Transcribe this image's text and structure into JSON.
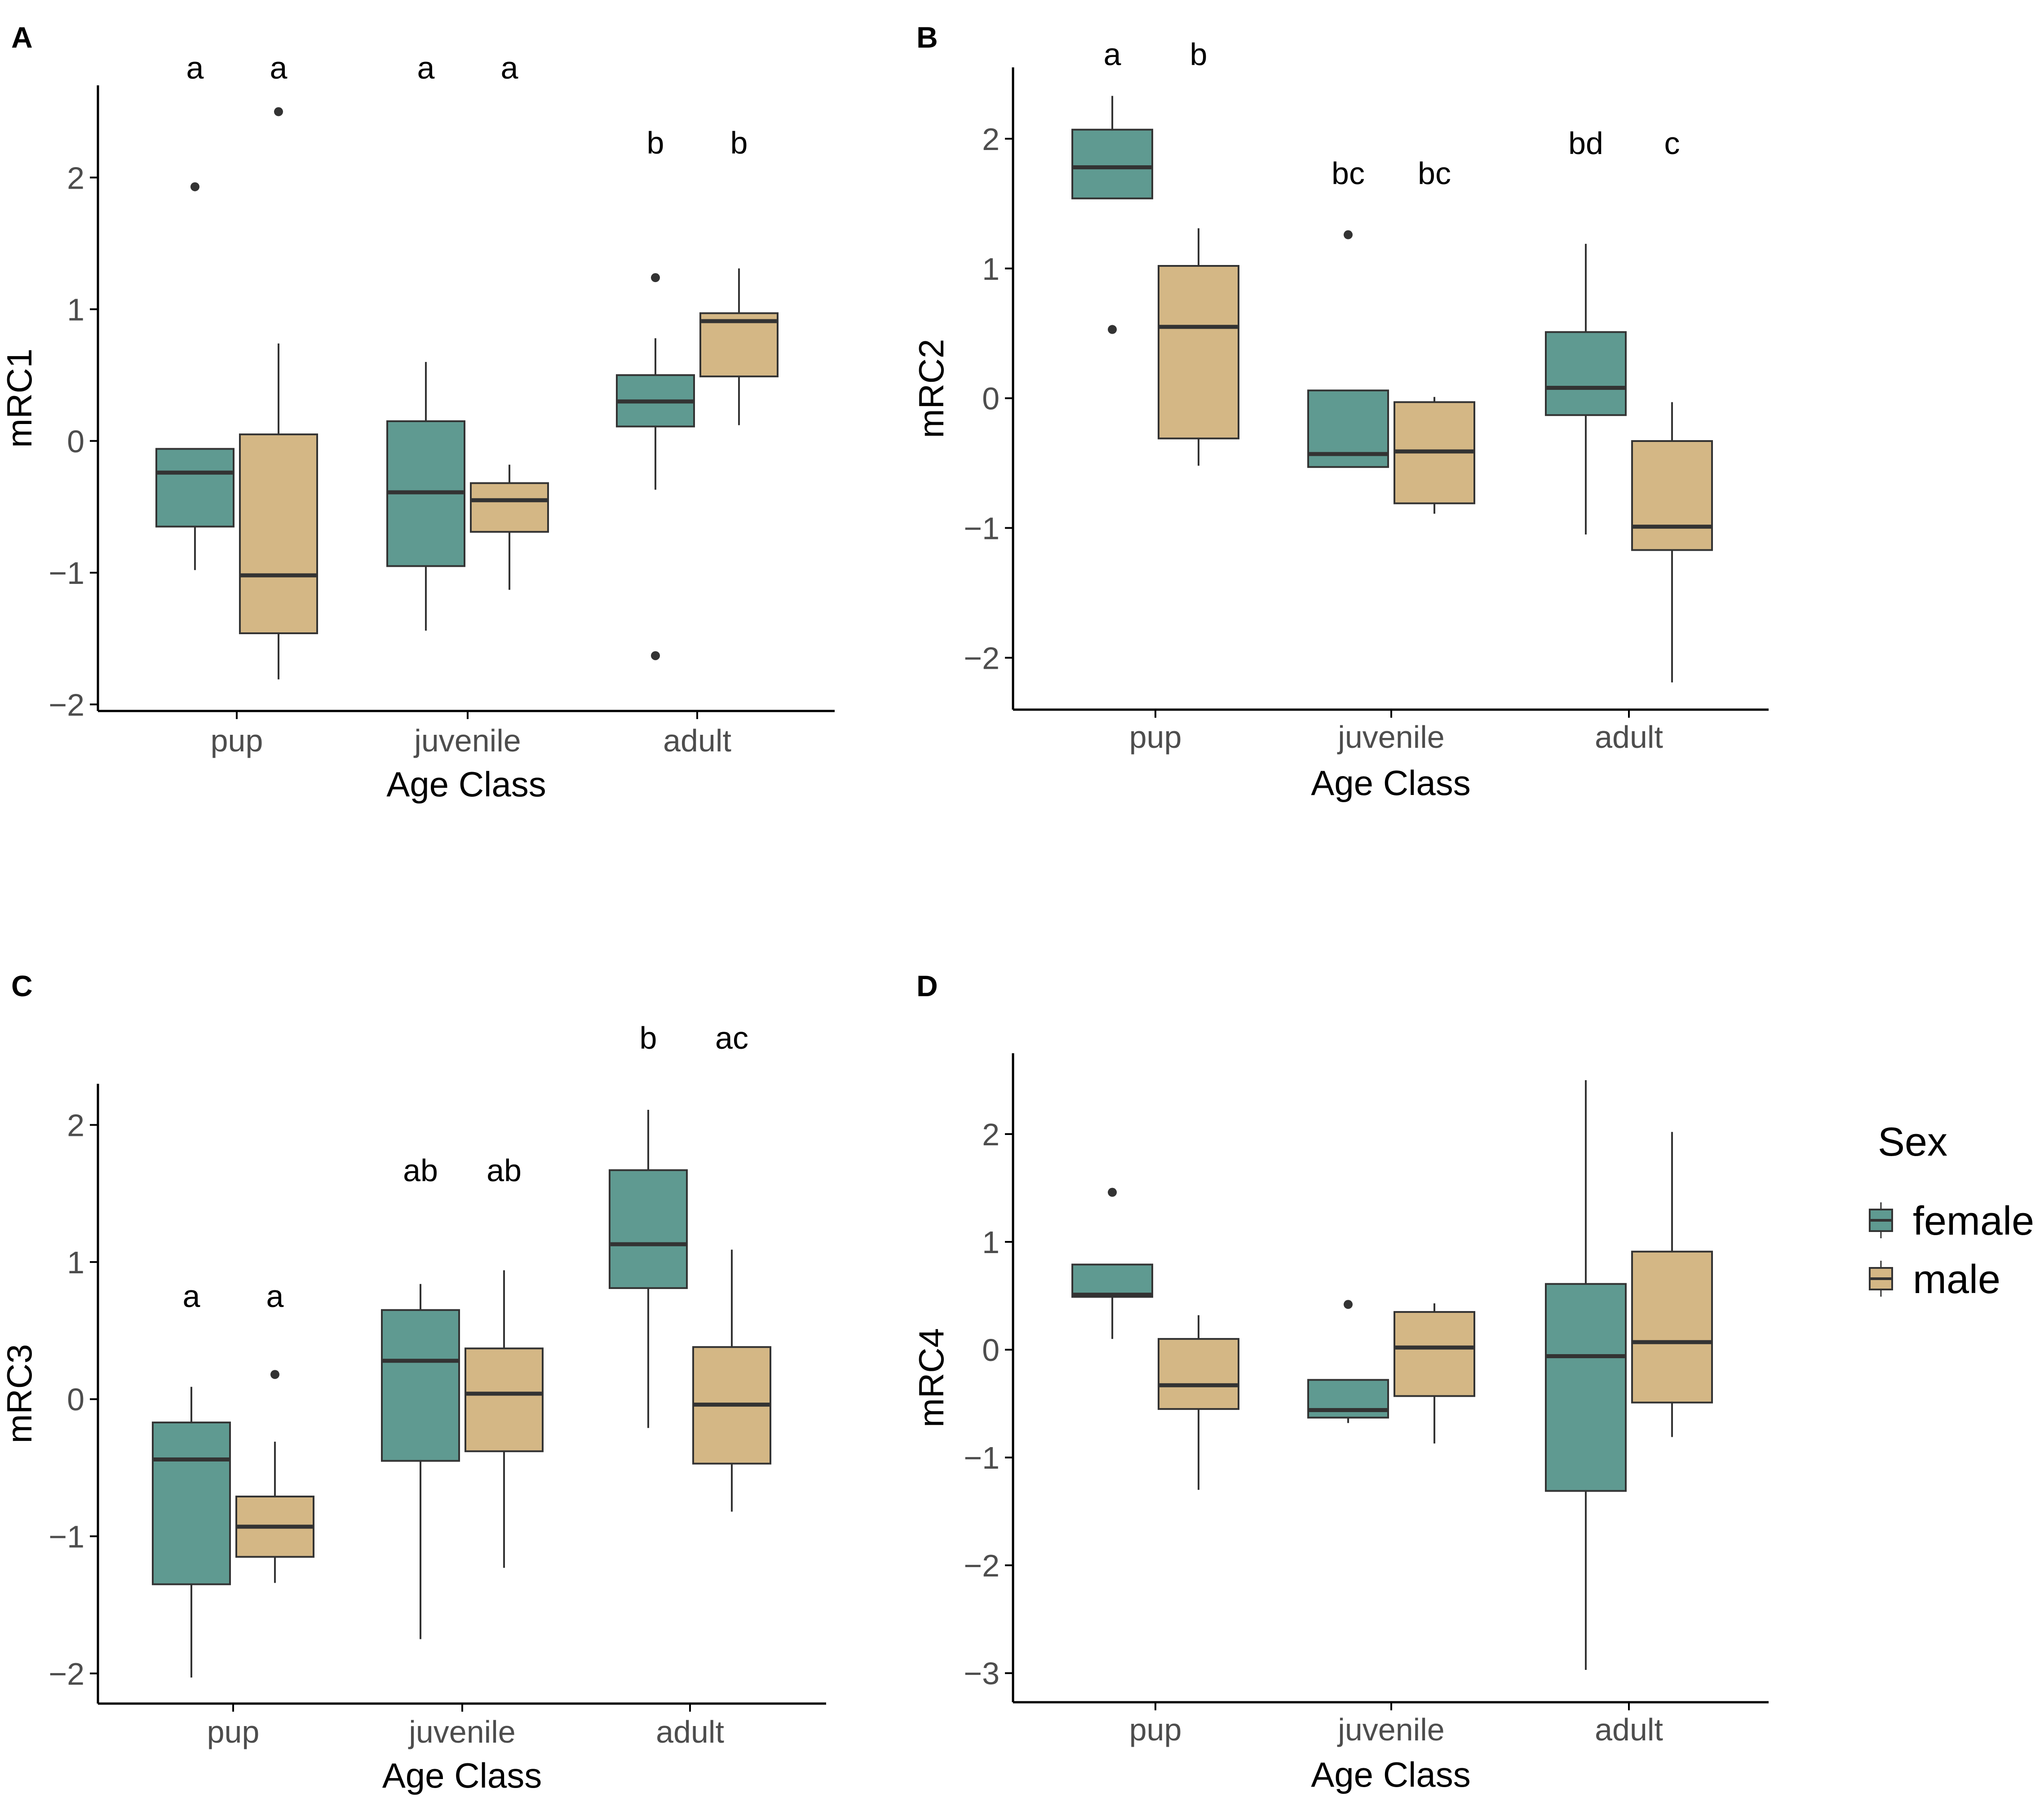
{
  "colors": {
    "female": "#5f9a91",
    "male": "#d4b785",
    "line": "#333333",
    "axis": "#000000"
  },
  "legend": {
    "title": "Sex",
    "items": [
      {
        "key": "female",
        "label": "female"
      },
      {
        "key": "male",
        "label": "male"
      }
    ]
  },
  "chart_data": [
    {
      "panel": "A",
      "type": "boxplot",
      "xlabel": "Age Class",
      "ylabel": "mRC1",
      "categories": [
        "pup",
        "juvenile",
        "adult"
      ],
      "ylim": [
        -2.05,
        2.7
      ],
      "yticks": [
        -2,
        -1,
        0,
        1,
        2
      ],
      "ytick_labels": [
        "−2",
        "−1",
        "0",
        "1",
        "2"
      ],
      "series": [
        {
          "name": "female",
          "boxes": [
            {
              "category": "pup",
              "min": -0.98,
              "q1": -0.65,
              "median": -0.24,
              "q3": -0.06,
              "max": -0.06,
              "outliers": [
                1.93
              ],
              "letter": "a"
            },
            {
              "category": "juvenile",
              "min": -1.44,
              "q1": -0.95,
              "median": -0.39,
              "q3": 0.15,
              "max": 0.6,
              "outliers": [],
              "letter": "a"
            },
            {
              "category": "adult",
              "min": -0.37,
              "q1": 0.11,
              "median": 0.3,
              "q3": 0.5,
              "max": 0.78,
              "outliers": [
                1.24,
                -1.63
              ],
              "letter": "b"
            }
          ]
        },
        {
          "name": "male",
          "boxes": [
            {
              "category": "pup",
              "min": -1.81,
              "q1": -1.46,
              "median": -1.02,
              "q3": 0.05,
              "max": 0.74,
              "outliers": [
                2.5
              ],
              "letter": "a"
            },
            {
              "category": "juvenile",
              "min": -1.13,
              "q1": -0.69,
              "median": -0.45,
              "q3": -0.32,
              "max": -0.18,
              "outliers": [],
              "letter": "a"
            },
            {
              "category": "adult",
              "min": 0.12,
              "q1": 0.49,
              "median": 0.91,
              "q3": 0.97,
              "max": 1.31,
              "outliers": [],
              "letter": "b"
            }
          ]
        }
      ]
    },
    {
      "panel": "B",
      "type": "boxplot",
      "xlabel": "Age Class",
      "ylabel": "mRC2",
      "categories": [
        "pup",
        "juvenile",
        "adult"
      ],
      "ylim": [
        -2.4,
        2.55
      ],
      "yticks": [
        -2,
        -1,
        0,
        1,
        2
      ],
      "ytick_labels": [
        "−2",
        "−1",
        "0",
        "1",
        "2"
      ],
      "series": [
        {
          "name": "female",
          "boxes": [
            {
              "category": "pup",
              "min": 1.54,
              "q1": 1.54,
              "median": 1.78,
              "q3": 2.07,
              "max": 2.33,
              "outliers": [
                0.53
              ],
              "letter": "a"
            },
            {
              "category": "juvenile",
              "min": -0.53,
              "q1": -0.53,
              "median": -0.43,
              "q3": 0.06,
              "max": 0.06,
              "outliers": [
                1.26
              ],
              "letter": "bc"
            },
            {
              "category": "adult",
              "min": -1.05,
              "q1": -0.13,
              "median": 0.08,
              "q3": 0.51,
              "max": 1.19,
              "outliers": [],
              "letter": "bd"
            }
          ]
        },
        {
          "name": "male",
          "boxes": [
            {
              "category": "pup",
              "min": -0.52,
              "q1": -0.31,
              "median": 0.55,
              "q3": 1.02,
              "max": 1.31,
              "outliers": [],
              "letter": "b"
            },
            {
              "category": "juvenile",
              "min": -0.89,
              "q1": -0.81,
              "median": -0.41,
              "q3": -0.03,
              "max": 0.01,
              "outliers": [],
              "letter": "bc"
            },
            {
              "category": "adult",
              "min": -2.19,
              "q1": -1.17,
              "median": -0.99,
              "q3": -0.33,
              "max": -0.03,
              "outliers": [],
              "letter": "c"
            }
          ]
        }
      ]
    },
    {
      "panel": "C",
      "type": "boxplot",
      "xlabel": "Age Class",
      "ylabel": "mRC3",
      "categories": [
        "pup",
        "juvenile",
        "adult"
      ],
      "ylim": [
        -2.22,
        2.3
      ],
      "yticks": [
        -2,
        -1,
        0,
        1,
        2
      ],
      "ytick_labels": [
        "−2",
        "−1",
        "0",
        "1",
        "2"
      ],
      "series": [
        {
          "name": "female",
          "boxes": [
            {
              "category": "pup",
              "min": -2.03,
              "q1": -1.35,
              "median": -0.44,
              "q3": -0.17,
              "max": 0.09,
              "outliers": [],
              "letter": "a"
            },
            {
              "category": "juvenile",
              "min": -1.75,
              "q1": -0.45,
              "median": 0.28,
              "q3": 0.65,
              "max": 0.84,
              "outliers": [],
              "letter": "ab"
            },
            {
              "category": "adult",
              "min": -0.21,
              "q1": 0.81,
              "median": 1.13,
              "q3": 1.67,
              "max": 2.11,
              "outliers": [],
              "letter": "b"
            }
          ]
        },
        {
          "name": "male",
          "boxes": [
            {
              "category": "pup",
              "min": -1.34,
              "q1": -1.15,
              "median": -0.93,
              "q3": -0.71,
              "max": -0.31,
              "outliers": [
                0.18
              ],
              "letter": "a"
            },
            {
              "category": "juvenile",
              "min": -1.23,
              "q1": -0.38,
              "median": 0.04,
              "q3": 0.37,
              "max": 0.94,
              "outliers": [],
              "letter": "ab"
            },
            {
              "category": "adult",
              "min": -0.82,
              "q1": -0.47,
              "median": -0.04,
              "q3": 0.38,
              "max": 1.09,
              "outliers": [],
              "letter": "ac"
            }
          ]
        }
      ]
    },
    {
      "panel": "D",
      "type": "boxplot",
      "xlabel": "Age Class",
      "ylabel": "mRC4",
      "categories": [
        "pup",
        "juvenile",
        "adult"
      ],
      "ylim": [
        -3.27,
        2.75
      ],
      "yticks": [
        -3,
        -2,
        -1,
        0,
        1,
        2
      ],
      "ytick_labels": [
        "−3",
        "−2",
        "−1",
        "0",
        "1",
        "2"
      ],
      "series": [
        {
          "name": "female",
          "boxes": [
            {
              "category": "pup",
              "min": 0.1,
              "q1": 0.49,
              "median": 0.51,
              "q3": 0.79,
              "max": 0.79,
              "outliers": [
                1.46
              ],
              "letter": ""
            },
            {
              "category": "juvenile",
              "min": -0.68,
              "q1": -0.63,
              "median": -0.56,
              "q3": -0.28,
              "max": -0.28,
              "outliers": [
                0.42
              ],
              "letter": ""
            },
            {
              "category": "adult",
              "min": -2.97,
              "q1": -1.31,
              "median": -0.06,
              "q3": 0.61,
              "max": 2.5,
              "outliers": [],
              "letter": ""
            }
          ]
        },
        {
          "name": "male",
          "boxes": [
            {
              "category": "pup",
              "min": -1.3,
              "q1": -0.55,
              "median": -0.33,
              "q3": 0.1,
              "max": 0.32,
              "outliers": [],
              "letter": ""
            },
            {
              "category": "juvenile",
              "min": -0.87,
              "q1": -0.43,
              "median": 0.02,
              "q3": 0.35,
              "max": 0.43,
              "outliers": [],
              "letter": ""
            },
            {
              "category": "adult",
              "min": -0.81,
              "q1": -0.49,
              "median": 0.07,
              "q3": 0.91,
              "max": 2.02,
              "outliers": [],
              "letter": ""
            }
          ]
        }
      ]
    }
  ]
}
